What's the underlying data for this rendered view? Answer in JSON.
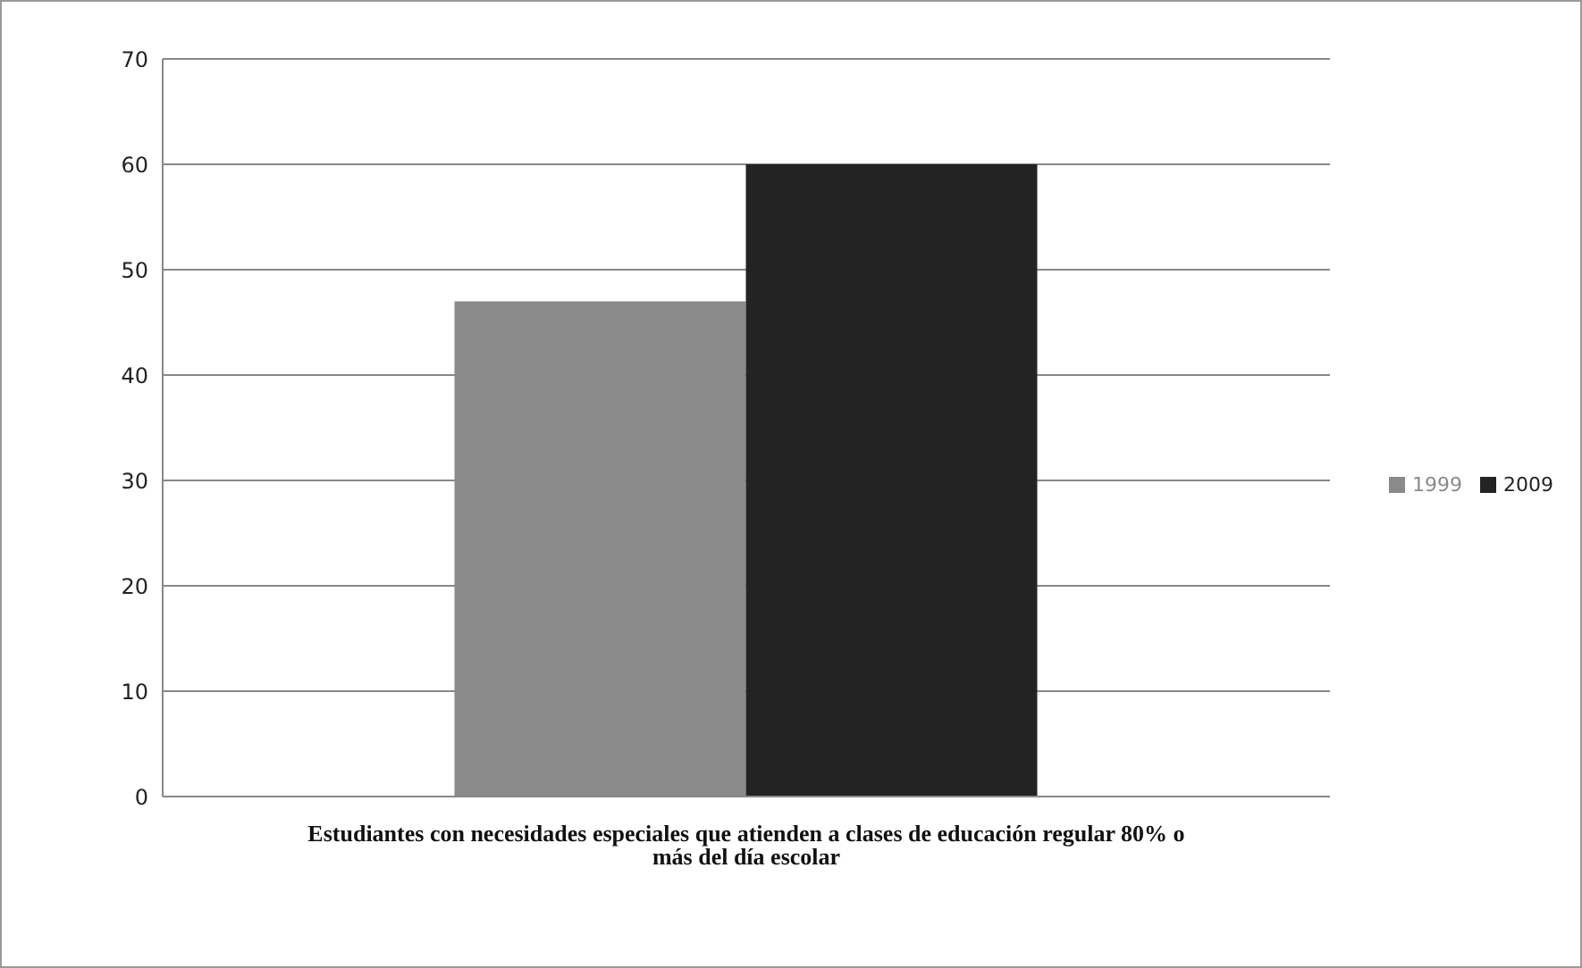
{
  "chart_data": {
    "type": "bar",
    "categories": [
      "Estudiantes con necesidades especiales que atienden a clases de educación regular 80% o más del día escolar"
    ],
    "series": [
      {
        "name": "1999",
        "color": "#8a8a8a",
        "values": [
          47
        ]
      },
      {
        "name": "2009",
        "color": "#232323",
        "values": [
          60
        ]
      }
    ],
    "ylim": [
      0,
      70
    ],
    "yticks": [
      0,
      10,
      20,
      30,
      40,
      50,
      60,
      70
    ],
    "grid": "y",
    "legend": "right"
  }
}
